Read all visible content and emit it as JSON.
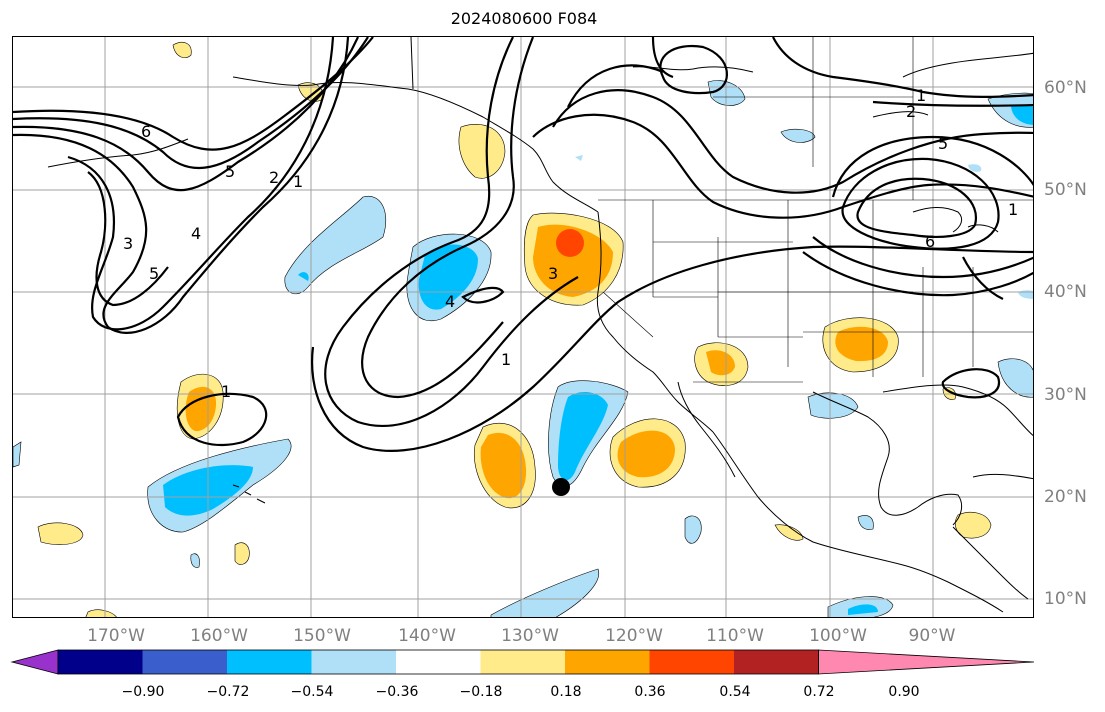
{
  "title": "2024080600 F084",
  "lon_labels": [
    "170°W",
    "160°W",
    "150°W",
    "140°W",
    "130°W",
    "120°W",
    "110°W",
    "100°W",
    "90°W"
  ],
  "lat_labels": [
    "60°N",
    "50°N",
    "40°N",
    "30°N",
    "20°N",
    "10°N"
  ],
  "colorbar": {
    "colors": [
      "#9932cc",
      "#00008b",
      "#3a5fcd",
      "#00bfff",
      "#b0e0f8",
      "#ffffff",
      "#ffeb8a",
      "#ffa500",
      "#ff4500",
      "#b22222",
      "#ff88b0"
    ],
    "ticks": [
      "−0.90",
      "−0.72",
      "−0.54",
      "−0.36",
      "−0.18",
      "0.18",
      "0.36",
      "0.54",
      "0.72",
      "0.90"
    ]
  },
  "contour_labels": [
    "6",
    "5",
    "2",
    "1",
    "3",
    "4",
    "5",
    "4",
    "3",
    "1",
    "1",
    "1",
    "2",
    "5",
    "6",
    "1"
  ],
  "marker": "black-dot"
}
